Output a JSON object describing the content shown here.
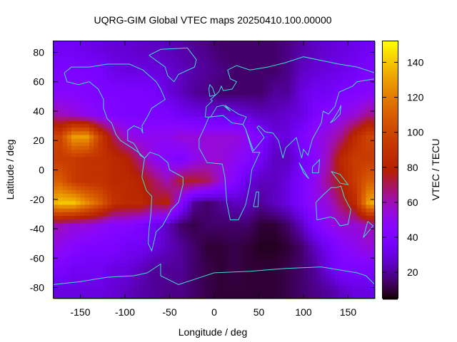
{
  "chart_data": {
    "type": "heatmap",
    "title": "UQRG-GIM Global VTEC maps 20250410.100.00000",
    "xlabel": "Longitude / deg",
    "ylabel": "Latitude / deg",
    "colorbar_label": "VTEC / TECU",
    "xlim": [
      -180,
      180
    ],
    "ylim": [
      -87.5,
      87.5
    ],
    "x_ticks": [
      -150,
      -100,
      -50,
      0,
      50,
      100,
      150
    ],
    "y_ticks": [
      80,
      60,
      40,
      20,
      0,
      -20,
      -40,
      -60,
      -80
    ],
    "colorbar_range": [
      5,
      152
    ],
    "colorbar_ticks": [
      20,
      40,
      60,
      80,
      100,
      120,
      140
    ],
    "colormap": "black-purple-red-yellow",
    "overlay_color": "#40e0d0",
    "lon": [
      -172.5,
      -157.5,
      -142.5,
      -127.5,
      -112.5,
      -97.5,
      -82.5,
      -67.5,
      -52.5,
      -37.5,
      -22.5,
      -7.5,
      7.5,
      22.5,
      37.5,
      52.5,
      67.5,
      82.5,
      97.5,
      112.5,
      127.5,
      142.5,
      157.5,
      172.5
    ],
    "lat": [
      82.5,
      67.5,
      52.5,
      37.5,
      22.5,
      7.5,
      -7.5,
      -22.5,
      -37.5,
      -52.5,
      -67.5,
      -82.5
    ],
    "values": [
      [
        35,
        35,
        32,
        30,
        28,
        28,
        26,
        25,
        24,
        22,
        20,
        18,
        15,
        15,
        15,
        15,
        15,
        18,
        22,
        25,
        28,
        30,
        32,
        35
      ],
      [
        40,
        40,
        40,
        38,
        32,
        30,
        30,
        30,
        28,
        25,
        22,
        20,
        18,
        15,
        15,
        15,
        15,
        18,
        25,
        28,
        30,
        32,
        35,
        40
      ],
      [
        45,
        45,
        42,
        40,
        40,
        40,
        40,
        38,
        30,
        25,
        20,
        18,
        15,
        15,
        15,
        15,
        20,
        20,
        30,
        35,
        35,
        40,
        42,
        45
      ],
      [
        60,
        55,
        50,
        45,
        42,
        40,
        40,
        40,
        40,
        35,
        32,
        30,
        30,
        30,
        28,
        25,
        25,
        28,
        30,
        40,
        45,
        50,
        55,
        65
      ],
      [
        100,
        130,
        130,
        95,
        70,
        55,
        50,
        50,
        50,
        55,
        55,
        55,
        55,
        55,
        50,
        40,
        30,
        30,
        40,
        50,
        55,
        65,
        85,
        100
      ],
      [
        95,
        95,
        90,
        90,
        85,
        80,
        65,
        50,
        45,
        40,
        50,
        55,
        55,
        50,
        45,
        35,
        25,
        25,
        35,
        45,
        60,
        85,
        95,
        95
      ],
      [
        110,
        95,
        90,
        90,
        85,
        85,
        80,
        70,
        60,
        75,
        75,
        70,
        55,
        45,
        30,
        25,
        25,
        30,
        40,
        50,
        65,
        80,
        95,
        110
      ],
      [
        140,
        140,
        125,
        110,
        90,
        85,
        85,
        75,
        80,
        45,
        20,
        15,
        20,
        25,
        25,
        20,
        25,
        30,
        40,
        50,
        55,
        70,
        85,
        130
      ],
      [
        60,
        55,
        55,
        50,
        45,
        45,
        40,
        35,
        25,
        15,
        12,
        15,
        15,
        15,
        15,
        10,
        10,
        15,
        25,
        40,
        50,
        55,
        55,
        60
      ],
      [
        50,
        45,
        40,
        40,
        40,
        35,
        35,
        30,
        25,
        20,
        15,
        10,
        10,
        12,
        10,
        8,
        8,
        10,
        15,
        25,
        35,
        45,
        50,
        55
      ],
      [
        40,
        35,
        35,
        35,
        30,
        30,
        25,
        20,
        20,
        20,
        15,
        12,
        10,
        12,
        10,
        10,
        10,
        12,
        15,
        20,
        30,
        40,
        40,
        40
      ],
      [
        30,
        30,
        30,
        30,
        28,
        25,
        22,
        20,
        18,
        18,
        15,
        12,
        10,
        10,
        10,
        10,
        10,
        12,
        15,
        18,
        20,
        25,
        30,
        30
      ]
    ]
  }
}
